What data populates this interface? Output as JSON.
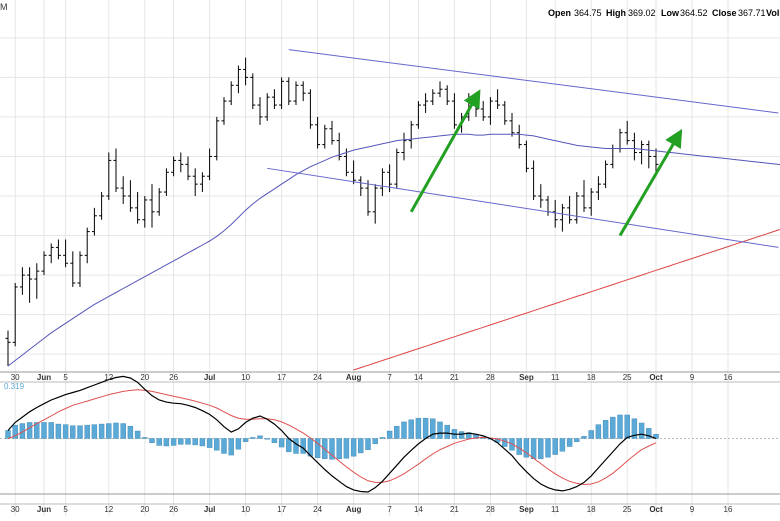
{
  "header": {
    "symbol_fragment": "M",
    "open_label": "Open",
    "open_value": "364.75",
    "high_label": "High",
    "high_value": "369.02",
    "low_label": "Low",
    "low_value": "364.52",
    "close_label": "Close",
    "close_value": "367.71",
    "volume_label": "Volume"
  },
  "colors": {
    "background": "#ffffff",
    "grid": "#e6e6e6",
    "price_bar": "#000000",
    "ma_short": "#5555bb",
    "ma_long": "#dd4444",
    "channel": "#6666cc",
    "arrow": "#22a022",
    "macd_line": "#000000",
    "signal_line": "#e05050",
    "histogram": "#5aa9d6",
    "tick_text": "#333333"
  },
  "macd_label": "0.319",
  "chart_data": [
    {
      "type": "ohlc",
      "title": "",
      "x_axis": {
        "ticks": [
          {
            "label": "30",
            "bold": false
          },
          {
            "label": "Jun",
            "bold": true
          },
          {
            "label": "5",
            "bold": false
          },
          {
            "label": "12",
            "bold": false
          },
          {
            "label": "20",
            "bold": false
          },
          {
            "label": "26",
            "bold": false
          },
          {
            "label": "Jul",
            "bold": true
          },
          {
            "label": "10",
            "bold": false
          },
          {
            "label": "17",
            "bold": false
          },
          {
            "label": "24",
            "bold": false
          },
          {
            "label": "Aug",
            "bold": true
          },
          {
            "label": "7",
            "bold": false
          },
          {
            "label": "14",
            "bold": false
          },
          {
            "label": "21",
            "bold": false
          },
          {
            "label": "28",
            "bold": false
          },
          {
            "label": "Sep",
            "bold": true
          },
          {
            "label": "11",
            "bold": false
          },
          {
            "label": "18",
            "bold": false
          },
          {
            "label": "25",
            "bold": false
          },
          {
            "label": "Oct",
            "bold": true
          },
          {
            "label": "9",
            "bold": false
          },
          {
            "label": "16",
            "bold": false
          }
        ],
        "bar_index_of_ticks": [
          1,
          5,
          8,
          14,
          19,
          23,
          28,
          33,
          38,
          43,
          48,
          53,
          57,
          62,
          67,
          72,
          76,
          81,
          86,
          90,
          95,
          100
        ]
      },
      "y_axis": {
        "range": [
          328,
          372
        ],
        "grid": true,
        "tick_labels_visible": false
      },
      "ohlc": [
        [
          332.0,
          333.0,
          328.5,
          331.5
        ],
        [
          331.5,
          339.0,
          331.0,
          338.5
        ],
        [
          338.5,
          341.0,
          337.5,
          340.0
        ],
        [
          340.0,
          341.0,
          336.5,
          339.5
        ],
        [
          339.5,
          341.5,
          337.0,
          340.5
        ],
        [
          340.5,
          343.0,
          340.0,
          342.5
        ],
        [
          342.5,
          344.0,
          341.5,
          343.5
        ],
        [
          343.5,
          344.5,
          342.0,
          342.5
        ],
        [
          342.5,
          344.5,
          341.0,
          341.5
        ],
        [
          341.5,
          343.0,
          338.5,
          339.0
        ],
        [
          339.0,
          343.0,
          338.5,
          342.5
        ],
        [
          342.5,
          346.0,
          341.5,
          345.5
        ],
        [
          345.5,
          348.5,
          345.0,
          347.5
        ],
        [
          347.5,
          350.5,
          347.0,
          350.0
        ],
        [
          350.0,
          355.5,
          349.5,
          354.5
        ],
        [
          354.5,
          356.0,
          350.5,
          351.0
        ],
        [
          351.0,
          352.5,
          349.0,
          350.0
        ],
        [
          350.0,
          352.0,
          348.0,
          348.5
        ],
        [
          348.5,
          350.5,
          346.5,
          347.0
        ],
        [
          347.0,
          350.0,
          346.0,
          349.5
        ],
        [
          349.5,
          351.5,
          346.0,
          348.0
        ],
        [
          348.0,
          351.0,
          347.5,
          350.5
        ],
        [
          350.5,
          353.5,
          350.0,
          353.0
        ],
        [
          353.0,
          355.0,
          352.5,
          354.5
        ],
        [
          354.5,
          355.5,
          353.0,
          354.0
        ],
        [
          354.0,
          355.0,
          352.0,
          352.5
        ],
        [
          352.5,
          353.5,
          350.0,
          351.5
        ],
        [
          351.5,
          353.0,
          350.5,
          352.5
        ],
        [
          352.5,
          356.0,
          352.0,
          355.0
        ],
        [
          355.0,
          360.0,
          354.5,
          359.5
        ],
        [
          359.5,
          362.5,
          359.0,
          362.0
        ],
        [
          362.0,
          364.5,
          361.5,
          364.0
        ],
        [
          364.0,
          366.5,
          363.0,
          366.0
        ],
        [
          366.0,
          367.5,
          364.0,
          365.0
        ],
        [
          365.0,
          365.5,
          361.0,
          361.5
        ],
        [
          361.5,
          362.5,
          359.0,
          360.0
        ],
        [
          360.0,
          363.0,
          359.5,
          362.5
        ],
        [
          362.5,
          363.5,
          361.0,
          361.5
        ],
        [
          361.5,
          365.0,
          361.0,
          364.5
        ],
        [
          364.5,
          365.0,
          361.5,
          362.0
        ],
        [
          362.0,
          364.5,
          361.5,
          364.0
        ],
        [
          364.0,
          364.5,
          362.0,
          363.0
        ],
        [
          363.0,
          363.5,
          358.5,
          359.0
        ],
        [
          359.0,
          360.0,
          356.0,
          356.5
        ],
        [
          356.5,
          359.0,
          356.0,
          358.5
        ],
        [
          358.5,
          359.5,
          356.5,
          357.0
        ],
        [
          357.0,
          358.0,
          354.5,
          355.0
        ],
        [
          355.0,
          356.0,
          352.5,
          353.0
        ],
        [
          353.0,
          354.5,
          351.5,
          352.0
        ],
        [
          352.0,
          352.5,
          350.0,
          351.0
        ],
        [
          351.0,
          352.0,
          347.5,
          348.0
        ],
        [
          348.0,
          351.5,
          346.5,
          351.0
        ],
        [
          351.0,
          353.5,
          350.0,
          353.0
        ],
        [
          353.0,
          354.0,
          350.5,
          351.5
        ],
        [
          351.5,
          356.0,
          351.0,
          355.5
        ],
        [
          355.5,
          358.0,
          354.5,
          357.0
        ],
        [
          357.0,
          359.5,
          356.0,
          359.0
        ],
        [
          359.0,
          362.0,
          358.5,
          361.5
        ],
        [
          361.5,
          363.0,
          360.5,
          362.0
        ],
        [
          362.0,
          363.5,
          361.5,
          363.0
        ],
        [
          363.0,
          364.5,
          362.5,
          363.5
        ],
        [
          363.5,
          364.0,
          361.5,
          362.0
        ],
        [
          362.0,
          363.0,
          358.5,
          359.0
        ],
        [
          359.0,
          360.5,
          358.0,
          360.0
        ],
        [
          360.0,
          363.0,
          359.5,
          362.5
        ],
        [
          362.5,
          363.0,
          360.0,
          361.0
        ],
        [
          361.0,
          362.0,
          359.5,
          360.0
        ],
        [
          360.0,
          362.5,
          359.0,
          362.0
        ],
        [
          362.0,
          363.5,
          361.0,
          361.5
        ],
        [
          361.5,
          362.0,
          359.0,
          359.5
        ],
        [
          359.5,
          360.5,
          357.5,
          358.0
        ],
        [
          358.0,
          359.0,
          356.0,
          356.5
        ],
        [
          356.5,
          357.0,
          353.0,
          353.5
        ],
        [
          353.5,
          354.5,
          349.5,
          350.0
        ],
        [
          350.0,
          351.5,
          348.5,
          349.5
        ],
        [
          349.5,
          350.0,
          347.5,
          348.0
        ],
        [
          348.0,
          349.5,
          346.0,
          347.0
        ],
        [
          347.0,
          349.0,
          345.5,
          348.5
        ],
        [
          348.5,
          350.0,
          346.5,
          347.0
        ],
        [
          347.0,
          350.5,
          346.5,
          350.0
        ],
        [
          350.0,
          352.0,
          348.0,
          348.5
        ],
        [
          348.5,
          351.0,
          347.5,
          350.5
        ],
        [
          350.5,
          352.5,
          349.5,
          351.5
        ],
        [
          351.5,
          354.5,
          351.0,
          354.0
        ],
        [
          354.0,
          356.5,
          353.5,
          356.0
        ],
        [
          356.0,
          358.5,
          355.5,
          358.0
        ],
        [
          358.0,
          359.5,
          356.5,
          357.0
        ],
        [
          357.0,
          358.0,
          354.5,
          355.5
        ],
        [
          355.5,
          357.0,
          354.0,
          356.5
        ],
        [
          356.5,
          357.0,
          353.5,
          355.0
        ],
        [
          355.0,
          356.0,
          352.5,
          354.0
        ]
      ],
      "series": [
        {
          "kind": "sma_short",
          "values": [
            328.5,
            329.2,
            329.9,
            330.6,
            331.3,
            332.0,
            332.7,
            333.3,
            333.9,
            334.5,
            335.1,
            335.7,
            336.3,
            336.8,
            337.3,
            337.8,
            338.3,
            338.8,
            339.3,
            339.8,
            340.3,
            340.8,
            341.3,
            341.8,
            342.3,
            342.8,
            343.3,
            343.8,
            344.3,
            344.9,
            345.6,
            346.4,
            347.3,
            348.2,
            349.0,
            349.7,
            350.3,
            350.9,
            351.5,
            352.1,
            352.7,
            353.2,
            353.7,
            354.1,
            354.5,
            354.9,
            355.2,
            355.5,
            355.8,
            356.0,
            356.2,
            356.4,
            356.6,
            356.8,
            357.0,
            357.1,
            357.2,
            357.3,
            357.4,
            357.5,
            357.6,
            357.7,
            357.8,
            357.8,
            357.8,
            357.7,
            357.7,
            357.8,
            357.8,
            357.8,
            357.8,
            357.8,
            357.7,
            357.6,
            357.4,
            357.2,
            357.0,
            356.8,
            356.6,
            356.4,
            356.3,
            356.2,
            356.1,
            356.0,
            356.0,
            356.0,
            356.0,
            356.0,
            355.9,
            355.8,
            355.7
          ]
        },
        {
          "kind": "sma_long",
          "values": [
            "",
            "",
            "",
            "",
            "",
            "",
            "",
            "",
            "",
            "",
            "",
            "",
            "",
            "",
            "",
            "",
            "",
            "",
            "",
            "",
            "",
            "",
            "",
            "",
            "",
            "",
            "",
            "",
            "",
            "",
            "",
            "",
            "",
            "",
            "",
            "",
            "",
            "",
            "",
            "",
            "",
            "",
            "",
            "",
            "",
            "",
            "",
            "",
            328.0,
            328.3,
            328.6,
            328.9,
            329.2,
            329.5,
            329.8,
            330.1,
            330.4,
            330.7,
            331.0,
            331.3,
            331.6,
            331.9,
            332.2,
            332.5,
            332.8,
            333.1,
            333.4,
            333.7,
            334.0,
            334.3,
            334.6,
            334.9,
            335.2,
            335.5,
            335.8,
            336.1,
            336.4,
            336.7,
            337.0,
            337.3,
            337.6,
            337.9,
            338.2,
            338.5,
            338.8,
            339.1,
            339.4,
            339.7,
            340.0,
            340.3,
            340.6
          ]
        }
      ],
      "annotations": [
        {
          "type": "trendline",
          "from": {
            "bar": 39,
            "price": 368.5
          },
          "to": {
            "bar": 107,
            "price": 360.5
          }
        },
        {
          "type": "trendline",
          "from": {
            "bar": 36,
            "price": 353.5
          },
          "to": {
            "bar": 107,
            "price": 343.5
          }
        },
        {
          "type": "arrow",
          "from": {
            "bar": 56,
            "price": 348.0
          },
          "to": {
            "bar": 65,
            "price": 362.5
          }
        },
        {
          "type": "arrow",
          "from": {
            "bar": 85,
            "price": 345.0
          },
          "to": {
            "bar": 93,
            "price": 357.5
          }
        }
      ]
    },
    {
      "type": "macd",
      "title": "",
      "y_axis": {
        "range": [
          -1.0,
          1.0
        ],
        "tick_labels_visible": false
      },
      "macd": [
        0.15,
        0.3,
        0.4,
        0.5,
        0.58,
        0.65,
        0.72,
        0.77,
        0.82,
        0.86,
        0.9,
        0.95,
        1.0,
        1.05,
        1.1,
        1.14,
        1.16,
        1.13,
        1.05,
        0.92,
        0.8,
        0.72,
        0.68,
        0.66,
        0.65,
        0.62,
        0.58,
        0.52,
        0.45,
        0.35,
        0.22,
        0.12,
        0.18,
        0.3,
        0.38,
        0.42,
        0.36,
        0.27,
        0.15,
        0.0,
        -0.1,
        -0.18,
        -0.32,
        -0.45,
        -0.58,
        -0.7,
        -0.8,
        -0.9,
        -0.96,
        -0.99,
        -1.0,
        -0.92,
        -0.8,
        -0.65,
        -0.5,
        -0.35,
        -0.22,
        -0.1,
        0.0,
        0.08,
        0.1,
        0.1,
        0.08,
        0.08,
        0.1,
        0.08,
        0.05,
        0.0,
        -0.08,
        -0.2,
        -0.32,
        -0.48,
        -0.62,
        -0.75,
        -0.85,
        -0.92,
        -0.96,
        -0.98,
        -0.95,
        -0.9,
        -0.82,
        -0.7,
        -0.55,
        -0.4,
        -0.25,
        -0.1,
        0.02,
        0.06,
        0.08,
        0.05,
        0.0
      ],
      "signal": [
        0.0,
        0.05,
        0.12,
        0.2,
        0.28,
        0.35,
        0.42,
        0.5,
        0.56,
        0.62,
        0.66,
        0.7,
        0.74,
        0.78,
        0.82,
        0.85,
        0.88,
        0.9,
        0.91,
        0.9,
        0.88,
        0.85,
        0.82,
        0.79,
        0.76,
        0.73,
        0.7,
        0.66,
        0.62,
        0.57,
        0.5,
        0.43,
        0.38,
        0.36,
        0.36,
        0.37,
        0.37,
        0.35,
        0.31,
        0.25,
        0.18,
        0.1,
        0.01,
        -0.09,
        -0.2,
        -0.31,
        -0.42,
        -0.53,
        -0.63,
        -0.72,
        -0.79,
        -0.82,
        -0.82,
        -0.79,
        -0.73,
        -0.66,
        -0.57,
        -0.48,
        -0.38,
        -0.29,
        -0.21,
        -0.15,
        -0.09,
        -0.05,
        -0.01,
        0.01,
        0.02,
        0.01,
        -0.01,
        -0.05,
        -0.1,
        -0.18,
        -0.27,
        -0.37,
        -0.47,
        -0.57,
        -0.66,
        -0.74,
        -0.8,
        -0.84,
        -0.86,
        -0.85,
        -0.81,
        -0.74,
        -0.65,
        -0.54,
        -0.42,
        -0.31,
        -0.21,
        -0.14,
        -0.08
      ],
      "histogram": [
        0.15,
        0.25,
        0.28,
        0.3,
        0.3,
        0.3,
        0.3,
        0.27,
        0.26,
        0.24,
        0.24,
        0.25,
        0.26,
        0.27,
        0.28,
        0.29,
        0.28,
        0.23,
        0.14,
        0.02,
        -0.08,
        -0.13,
        -0.14,
        -0.13,
        -0.11,
        -0.11,
        -0.12,
        -0.14,
        -0.17,
        -0.22,
        -0.28,
        -0.31,
        -0.2,
        -0.06,
        0.02,
        0.05,
        -0.01,
        -0.08,
        -0.16,
        -0.25,
        -0.28,
        -0.28,
        -0.33,
        -0.36,
        -0.38,
        -0.39,
        -0.38,
        -0.37,
        -0.33,
        -0.27,
        -0.21,
        -0.1,
        0.02,
        0.14,
        0.23,
        0.31,
        0.35,
        0.38,
        0.38,
        0.37,
        0.31,
        0.25,
        0.17,
        0.13,
        0.11,
        0.07,
        0.03,
        -0.01,
        -0.07,
        -0.15,
        -0.22,
        -0.3,
        -0.35,
        -0.38,
        -0.38,
        -0.35,
        -0.3,
        -0.24,
        -0.15,
        -0.06,
        0.04,
        0.15,
        0.26,
        0.34,
        0.4,
        0.44,
        0.44,
        0.37,
        0.29,
        0.19,
        0.08
      ]
    }
  ]
}
